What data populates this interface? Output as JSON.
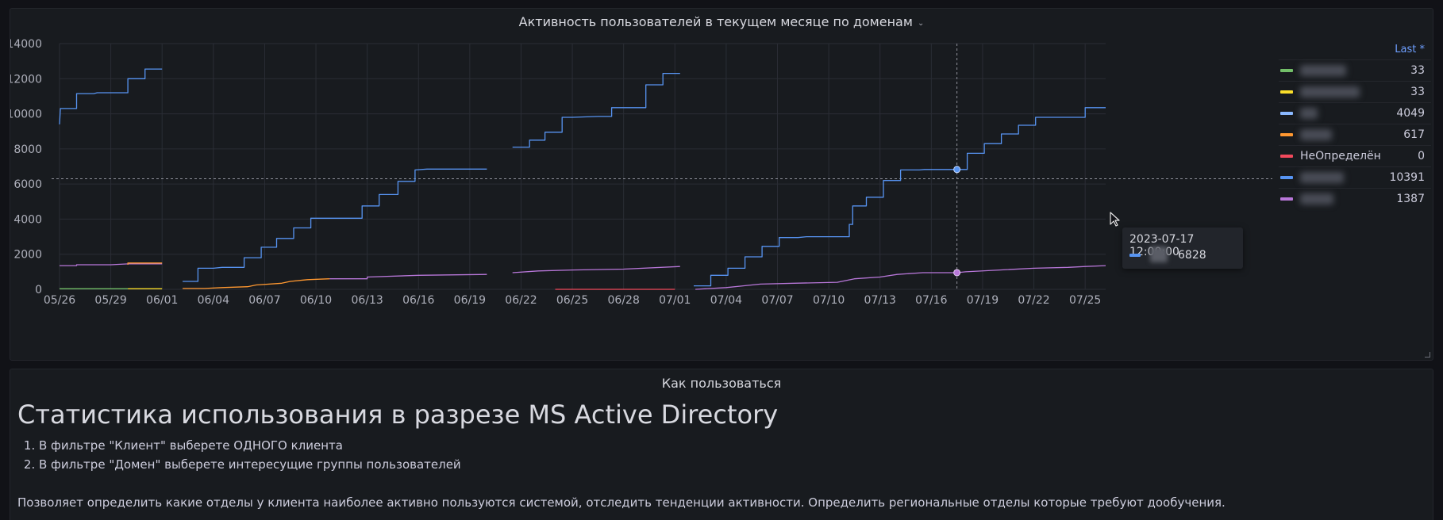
{
  "chart_panel": {
    "title": "Активность пользователей в текущем месяце по доменам"
  },
  "legend": {
    "header": "Last *",
    "items": [
      {
        "name": "",
        "color": "#73bf69",
        "value": "33"
      },
      {
        "name": "",
        "color": "#fade2a",
        "value": "33"
      },
      {
        "name": "",
        "color": "#8ab8ff",
        "value": "4049"
      },
      {
        "name": "",
        "color": "#ff9830",
        "value": "617"
      },
      {
        "name": "НеОпределён",
        "color": "#f2495c",
        "value": "0"
      },
      {
        "name": "",
        "color": "#5794f2",
        "value": "10391"
      },
      {
        "name": "",
        "color": "#b877d9",
        "value": "1387"
      }
    ]
  },
  "tooltip": {
    "time": "2023-07-17 12:00:00",
    "value": "6828",
    "color": "#5794f2"
  },
  "chart_data": {
    "type": "line",
    "y_ticks": [
      "0",
      "2000",
      "4000",
      "6000",
      "8000",
      "10000",
      "12000",
      "14000"
    ],
    "ylim": [
      0,
      14000
    ],
    "x_ticks": [
      "05/26",
      "05/29",
      "06/01",
      "06/04",
      "06/07",
      "06/10",
      "06/13",
      "06/16",
      "06/19",
      "06/22",
      "06/25",
      "06/28",
      "07/01",
      "07/04",
      "07/07",
      "07/10",
      "07/13",
      "07/16",
      "07/19",
      "07/22",
      "07/25"
    ],
    "xlim_days": [
      0,
      61.2
    ],
    "grid": true,
    "hover_day": 52.5,
    "hover_line_value": 6300,
    "series": [
      {
        "color": "#5794f2",
        "segments": [
          [
            [
              0,
              9400
            ],
            [
              0.05,
              10300
            ],
            [
              1,
              10300
            ],
            [
              1,
              11150
            ],
            [
              2,
              11150
            ],
            [
              2.2,
              11200
            ],
            [
              4,
              11200
            ],
            [
              4,
              12000
            ],
            [
              5,
              12000
            ],
            [
              5,
              12550
            ],
            [
              6,
              12550
            ]
          ],
          [
            [
              7.2,
              450
            ],
            [
              8.1,
              450
            ],
            [
              8.1,
              1200
            ],
            [
              9,
              1200
            ],
            [
              9.5,
              1250
            ],
            [
              10.8,
              1250
            ],
            [
              10.8,
              1800
            ],
            [
              11.8,
              1800
            ],
            [
              11.8,
              2400
            ],
            [
              12.7,
              2400
            ],
            [
              12.7,
              2900
            ],
            [
              13.7,
              2900
            ],
            [
              13.7,
              3500
            ],
            [
              14.7,
              3500
            ],
            [
              14.7,
              4050
            ],
            [
              15.6,
              4050
            ],
            [
              17.7,
              4050
            ],
            [
              17.7,
              4750
            ],
            [
              18.7,
              4750
            ],
            [
              18.7,
              5400
            ],
            [
              19.8,
              5400
            ],
            [
              19.8,
              6150
            ],
            [
              20.8,
              6150
            ],
            [
              20.8,
              6800
            ],
            [
              21.5,
              6850
            ],
            [
              25,
              6850
            ]
          ],
          [
            [
              26.5,
              8100
            ],
            [
              27.5,
              8100
            ],
            [
              27.5,
              8500
            ],
            [
              28.4,
              8500
            ],
            [
              28.4,
              8950
            ],
            [
              29.4,
              8950
            ],
            [
              29.4,
              9800
            ],
            [
              30,
              9800
            ],
            [
              31.5,
              9850
            ],
            [
              32.3,
              9850
            ],
            [
              32.3,
              10350
            ],
            [
              34.3,
              10350
            ],
            [
              34.3,
              11650
            ],
            [
              35.3,
              11650
            ],
            [
              35.3,
              12300
            ],
            [
              36.3,
              12300
            ]
          ],
          [
            [
              37.1,
              200
            ],
            [
              38.1,
              200
            ],
            [
              38.1,
              800
            ],
            [
              39.1,
              800
            ],
            [
              39.1,
              1200
            ],
            [
              40.1,
              1200
            ],
            [
              40.1,
              1850
            ],
            [
              41.1,
              1850
            ],
            [
              41.1,
              2450
            ],
            [
              42.1,
              2450
            ],
            [
              42.1,
              2950
            ],
            [
              43.2,
              2950
            ],
            [
              43.7,
              3000
            ],
            [
              46.2,
              3000
            ],
            [
              46.2,
              3700
            ],
            [
              46.4,
              3700
            ],
            [
              46.4,
              4750
            ],
            [
              47.2,
              4750
            ],
            [
              47.2,
              5250
            ],
            [
              48.2,
              5250
            ],
            [
              48.2,
              6200
            ],
            [
              49.2,
              6200
            ],
            [
              49.2,
              6800
            ],
            [
              50.3,
              6800
            ],
            [
              50.6,
              6830
            ],
            [
              52.5,
              6830
            ],
            [
              53.1,
              6830
            ],
            [
              53.1,
              7750
            ],
            [
              54.1,
              7750
            ],
            [
              54.1,
              8300
            ],
            [
              55.1,
              8300
            ],
            [
              55.1,
              8850
            ],
            [
              56.1,
              8850
            ],
            [
              56.1,
              9350
            ],
            [
              57.1,
              9350
            ],
            [
              57.1,
              9800
            ],
            [
              58,
              9800
            ],
            [
              60,
              9800
            ],
            [
              60,
              10350
            ],
            [
              61.2,
              10350
            ]
          ]
        ]
      },
      {
        "color": "#b877d9",
        "segments": [
          [
            [
              0,
              1350
            ],
            [
              1,
              1350
            ],
            [
              1,
              1400
            ],
            [
              3,
              1400
            ],
            [
              4,
              1450
            ],
            [
              6,
              1450
            ]
          ],
          [
            [
              15.8,
              600
            ],
            [
              18,
              600
            ],
            [
              18,
              700
            ],
            [
              21,
              800
            ],
            [
              25,
              850
            ]
          ],
          [
            [
              26.5,
              950
            ],
            [
              28,
              1050
            ],
            [
              30,
              1100
            ],
            [
              33,
              1150
            ],
            [
              36.3,
              1300
            ]
          ],
          [
            [
              37.2,
              0
            ],
            [
              39,
              100
            ],
            [
              40,
              200
            ],
            [
              41,
              300
            ],
            [
              43,
              350
            ],
            [
              45.5,
              400
            ],
            [
              46.5,
              600
            ],
            [
              48,
              700
            ],
            [
              49,
              850
            ],
            [
              50.5,
              950
            ],
            [
              52.5,
              950
            ],
            [
              53,
              1000
            ],
            [
              55,
              1100
            ],
            [
              57,
              1200
            ],
            [
              59,
              1250
            ],
            [
              60,
              1300
            ],
            [
              61.2,
              1350
            ]
          ]
        ]
      },
      {
        "color": "#ff9830",
        "segments": [
          [
            [
              4,
              1400
            ],
            [
              4,
              1500
            ],
            [
              6,
              1500
            ]
          ],
          [
            [
              7.2,
              50
            ],
            [
              8.5,
              50
            ],
            [
              9.5,
              100
            ],
            [
              11,
              150
            ],
            [
              11.5,
              250
            ],
            [
              13,
              350
            ],
            [
              13.5,
              450
            ],
            [
              14.5,
              550
            ],
            [
              15.8,
              600
            ]
          ]
        ]
      },
      {
        "color": "#73bf69",
        "segments": [
          [
            [
              0,
              33
            ],
            [
              4,
              33
            ]
          ]
        ]
      },
      {
        "color": "#fade2a",
        "segments": [
          [
            [
              4,
              33
            ],
            [
              6,
              33
            ]
          ]
        ]
      },
      {
        "color": "#f2495c",
        "segments": [
          [
            [
              29,
              0
            ],
            [
              36,
              0
            ]
          ]
        ]
      }
    ]
  },
  "text_panel": {
    "title": "Как пользоваться",
    "heading": "Статистика использования в разрезе MS Active Directory",
    "list": [
      "В фильтре \"Клиент\" выберете ОДНОГО клиента",
      "В фильтре \"Домен\" выберете интересущие группы пользователей"
    ],
    "paragraph": "Позволяет определить какие отделы у клиента наиболее активно пользуются системой, отследить тенденции активности. Определить региональные отделы которые требуют дообучения."
  }
}
